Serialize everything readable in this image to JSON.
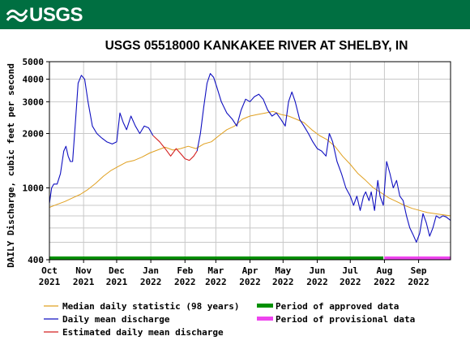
{
  "header": {
    "logo_text": "USGS",
    "logo_icon": "usgs-wave-icon",
    "background_color": "#006f41"
  },
  "chart_data": {
    "type": "line",
    "title": "USGS 05518000 KANKAKEE RIVER AT SHELBY, IN",
    "ylabel": "DAILY Discharge, cubic feet per second",
    "xlabel": "",
    "y_scale": "log",
    "ylim": [
      400,
      5000
    ],
    "y_ticks": [
      {
        "value": 400,
        "label": "400"
      },
      {
        "value": 1000,
        "label": "1000"
      },
      {
        "value": 2000,
        "label": "2000"
      },
      {
        "value": 3000,
        "label": "3000"
      },
      {
        "value": 4000,
        "label": "4000"
      },
      {
        "value": 5000,
        "label": "5000"
      }
    ],
    "xlim": [
      "2021-10-01",
      "2022-09-30"
    ],
    "x_ticks": [
      {
        "date": "2021-10-01",
        "label": "Oct\n2021"
      },
      {
        "date": "2021-11-01",
        "label": "Nov\n2021"
      },
      {
        "date": "2021-12-01",
        "label": "Dec\n2021"
      },
      {
        "date": "2022-01-01",
        "label": "Jan\n2022"
      },
      {
        "date": "2022-02-01",
        "label": "Feb\n2022"
      },
      {
        "date": "2022-03-01",
        "label": "Mar\n2022"
      },
      {
        "date": "2022-04-01",
        "label": "Apr\n2022"
      },
      {
        "date": "2022-05-01",
        "label": "May\n2022"
      },
      {
        "date": "2022-06-01",
        "label": "Jun\n2022"
      },
      {
        "date": "2022-07-01",
        "label": "Jul\n2022"
      },
      {
        "date": "2022-08-01",
        "label": "Aug\n2022"
      },
      {
        "date": "2022-09-01",
        "label": "Sep\n2022"
      }
    ],
    "grid": true,
    "legend_position": "bottom",
    "series": [
      {
        "name": "Median daily statistic (98 years)",
        "color": "#e0a020",
        "points": [
          [
            "2021-10-01",
            780
          ],
          [
            "2021-10-08",
            810
          ],
          [
            "2021-10-15",
            840
          ],
          [
            "2021-10-22",
            880
          ],
          [
            "2021-10-29",
            920
          ],
          [
            "2021-11-05",
            980
          ],
          [
            "2021-11-12",
            1060
          ],
          [
            "2021-11-19",
            1160
          ],
          [
            "2021-11-26",
            1250
          ],
          [
            "2021-12-03",
            1320
          ],
          [
            "2021-12-10",
            1390
          ],
          [
            "2021-12-17",
            1420
          ],
          [
            "2021-12-24",
            1480
          ],
          [
            "2021-12-31",
            1560
          ],
          [
            "2022-01-07",
            1620
          ],
          [
            "2022-01-14",
            1680
          ],
          [
            "2022-01-21",
            1620
          ],
          [
            "2022-01-28",
            1650
          ],
          [
            "2022-02-04",
            1700
          ],
          [
            "2022-02-11",
            1650
          ],
          [
            "2022-02-18",
            1750
          ],
          [
            "2022-02-25",
            1800
          ],
          [
            "2022-03-04",
            1950
          ],
          [
            "2022-03-11",
            2100
          ],
          [
            "2022-03-18",
            2200
          ],
          [
            "2022-03-25",
            2400
          ],
          [
            "2022-04-01",
            2500
          ],
          [
            "2022-04-08",
            2550
          ],
          [
            "2022-04-15",
            2600
          ],
          [
            "2022-04-22",
            2650
          ],
          [
            "2022-04-29",
            2550
          ],
          [
            "2022-05-06",
            2500
          ],
          [
            "2022-05-13",
            2400
          ],
          [
            "2022-05-20",
            2300
          ],
          [
            "2022-05-27",
            2100
          ],
          [
            "2022-06-03",
            1950
          ],
          [
            "2022-06-10",
            1850
          ],
          [
            "2022-06-17",
            1700
          ],
          [
            "2022-06-24",
            1500
          ],
          [
            "2022-07-01",
            1350
          ],
          [
            "2022-07-08",
            1200
          ],
          [
            "2022-07-15",
            1100
          ],
          [
            "2022-07-22",
            1000
          ],
          [
            "2022-07-29",
            940
          ],
          [
            "2022-08-05",
            880
          ],
          [
            "2022-08-12",
            840
          ],
          [
            "2022-08-19",
            800
          ],
          [
            "2022-08-26",
            770
          ],
          [
            "2022-09-02",
            750
          ],
          [
            "2022-09-09",
            730
          ],
          [
            "2022-09-16",
            720
          ],
          [
            "2022-09-23",
            710
          ],
          [
            "2022-09-30",
            700
          ]
        ]
      },
      {
        "name": "Daily mean discharge",
        "color": "#1010c0",
        "points": [
          [
            "2021-10-01",
            820
          ],
          [
            "2021-10-03",
            1000
          ],
          [
            "2021-10-05",
            1050
          ],
          [
            "2021-10-08",
            1050
          ],
          [
            "2021-10-11",
            1200
          ],
          [
            "2021-10-14",
            1600
          ],
          [
            "2021-10-16",
            1700
          ],
          [
            "2021-10-18",
            1500
          ],
          [
            "2021-10-20",
            1400
          ],
          [
            "2021-10-22",
            1400
          ],
          [
            "2021-10-25",
            2500
          ],
          [
            "2021-10-27",
            3800
          ],
          [
            "2021-10-30",
            4200
          ],
          [
            "2021-11-02",
            4000
          ],
          [
            "2021-11-05",
            3000
          ],
          [
            "2021-11-09",
            2200
          ],
          [
            "2021-11-13",
            2000
          ],
          [
            "2021-11-17",
            1900
          ],
          [
            "2021-11-22",
            1800
          ],
          [
            "2021-11-27",
            1750
          ],
          [
            "2021-12-01",
            1800
          ],
          [
            "2021-12-04",
            2600
          ],
          [
            "2021-12-07",
            2300
          ],
          [
            "2021-12-10",
            2100
          ],
          [
            "2021-12-14",
            2500
          ],
          [
            "2021-12-18",
            2200
          ],
          [
            "2021-12-22",
            2000
          ],
          [
            "2021-12-26",
            2200
          ],
          [
            "2021-12-30",
            2150
          ],
          [
            "2022-01-03",
            1950
          ]
        ]
      },
      {
        "name": "Estimated daily mean discharge",
        "color": "#d42020",
        "points": [
          [
            "2022-01-03",
            1950
          ],
          [
            "2022-01-09",
            1800
          ],
          [
            "2022-01-14",
            1650
          ],
          [
            "2022-01-19",
            1500
          ],
          [
            "2022-01-24",
            1650
          ],
          [
            "2022-01-28",
            1550
          ],
          [
            "2022-02-01",
            1450
          ],
          [
            "2022-02-05",
            1420
          ],
          [
            "2022-02-09",
            1500
          ],
          [
            "2022-02-12",
            1600
          ]
        ]
      },
      {
        "name": "Daily mean discharge (continued)",
        "color": "#1010c0",
        "points": [
          [
            "2022-02-12",
            1600
          ],
          [
            "2022-02-15",
            2000
          ],
          [
            "2022-02-18",
            2800
          ],
          [
            "2022-02-21",
            3800
          ],
          [
            "2022-02-24",
            4300
          ],
          [
            "2022-02-27",
            4100
          ],
          [
            "2022-03-02",
            3600
          ],
          [
            "2022-03-06",
            3000
          ],
          [
            "2022-03-11",
            2600
          ],
          [
            "2022-03-16",
            2400
          ],
          [
            "2022-03-20",
            2200
          ],
          [
            "2022-03-24",
            2700
          ],
          [
            "2022-03-28",
            3100
          ],
          [
            "2022-04-01",
            3000
          ],
          [
            "2022-04-05",
            3200
          ],
          [
            "2022-04-09",
            3300
          ],
          [
            "2022-04-13",
            3100
          ],
          [
            "2022-04-17",
            2700
          ],
          [
            "2022-04-21",
            2500
          ],
          [
            "2022-04-25",
            2600
          ],
          [
            "2022-04-29",
            2400
          ],
          [
            "2022-05-03",
            2200
          ],
          [
            "2022-05-06",
            3000
          ],
          [
            "2022-05-09",
            3400
          ],
          [
            "2022-05-12",
            3000
          ],
          [
            "2022-05-16",
            2400
          ],
          [
            "2022-05-20",
            2200
          ],
          [
            "2022-05-24",
            2000
          ],
          [
            "2022-05-28",
            1800
          ],
          [
            "2022-06-01",
            1650
          ],
          [
            "2022-06-05",
            1600
          ],
          [
            "2022-06-09",
            1500
          ],
          [
            "2022-06-12",
            2000
          ],
          [
            "2022-06-15",
            1800
          ],
          [
            "2022-06-19",
            1400
          ],
          [
            "2022-06-23",
            1200
          ],
          [
            "2022-06-27",
            1000
          ],
          [
            "2022-07-01",
            900
          ],
          [
            "2022-07-04",
            800
          ],
          [
            "2022-07-07",
            900
          ],
          [
            "2022-07-10",
            750
          ],
          [
            "2022-07-13",
            900
          ],
          [
            "2022-07-15",
            950
          ],
          [
            "2022-07-18",
            850
          ],
          [
            "2022-07-20",
            950
          ],
          [
            "2022-07-23",
            750
          ],
          [
            "2022-07-26",
            1100
          ],
          [
            "2022-07-28",
            900
          ],
          [
            "2022-07-31",
            800
          ],
          [
            "2022-08-03",
            1400
          ],
          [
            "2022-08-06",
            1200
          ],
          [
            "2022-08-09",
            1000
          ],
          [
            "2022-08-12",
            1100
          ],
          [
            "2022-08-15",
            900
          ],
          [
            "2022-08-18",
            850
          ],
          [
            "2022-08-21",
            700
          ],
          [
            "2022-08-24",
            600
          ],
          [
            "2022-08-27",
            550
          ],
          [
            "2022-08-30",
            500
          ],
          [
            "2022-09-02",
            560
          ],
          [
            "2022-09-05",
            720
          ],
          [
            "2022-09-08",
            640
          ],
          [
            "2022-09-11",
            540
          ],
          [
            "2022-09-14",
            600
          ],
          [
            "2022-09-17",
            700
          ],
          [
            "2022-09-20",
            680
          ],
          [
            "2022-09-23",
            700
          ],
          [
            "2022-09-26",
            690
          ],
          [
            "2022-09-30",
            660
          ]
        ]
      }
    ],
    "periods": [
      {
        "name": "Period of approved data",
        "color": "#009000",
        "start": "2021-10-01",
        "end": "2022-07-31"
      },
      {
        "name": "Period of provisional data",
        "color": "#ee44ee",
        "start": "2022-08-01",
        "end": "2022-09-30"
      }
    ],
    "legend": [
      {
        "label": "Median daily statistic (98 years)",
        "color": "#e0a020",
        "kind": "line"
      },
      {
        "label": "Period of approved data",
        "color": "#009000",
        "kind": "bar"
      },
      {
        "label": "Daily mean discharge",
        "color": "#1010c0",
        "kind": "line"
      },
      {
        "label": "Period of provisional data",
        "color": "#ee44ee",
        "kind": "bar"
      },
      {
        "label": "Estimated daily mean discharge",
        "color": "#d42020",
        "kind": "line"
      }
    ]
  }
}
